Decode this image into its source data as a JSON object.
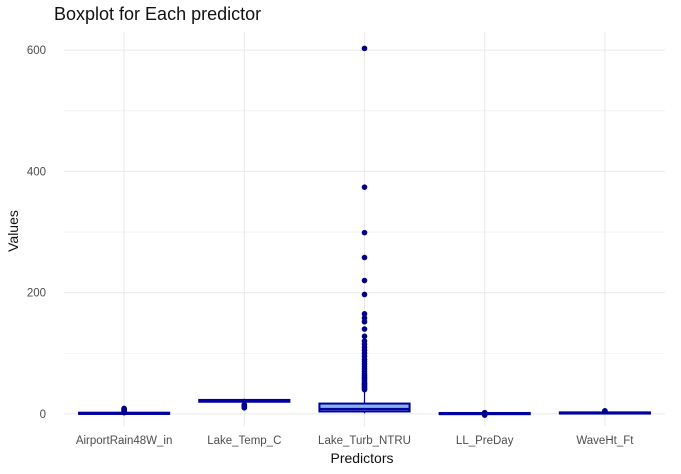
{
  "chart_data": {
    "type": "boxplot",
    "title": "Boxplot for Each predictor",
    "xlabel": "Predictors",
    "ylabel": "Values",
    "ylim": [
      -20,
      630
    ],
    "y_ticks": [
      0,
      200,
      400,
      600
    ],
    "grid": true,
    "colors": {
      "box_fill": "#87b6e6",
      "box_stroke": "#0000a0",
      "outlier": "#00008b",
      "grid": "#ebebeb"
    },
    "categories": [
      "AirportRain48W_in",
      "Lake_Temp_C",
      "Lake_Turb_NTRU",
      "LL_PreDay",
      "WaveHt_Ft"
    ],
    "series": [
      {
        "category": "AirportRain48W_in",
        "min": 0,
        "q1": 0,
        "median": 0.2,
        "q3": 0.6,
        "max": 1.5,
        "outliers": [
          2,
          3,
          4,
          5,
          6,
          7,
          8,
          9
        ]
      },
      {
        "category": "Lake_Temp_C",
        "min": 17,
        "q1": 20,
        "median": 21.5,
        "q3": 23,
        "max": 25,
        "outliers": [
          10,
          11,
          12,
          13,
          14,
          15
        ]
      },
      {
        "category": "Lake_Turb_NTRU",
        "min": 1,
        "q1": 4,
        "median": 8,
        "q3": 17,
        "max": 37,
        "outliers": [
          40,
          42,
          44,
          46,
          48,
          50,
          52,
          55,
          58,
          60,
          63,
          66,
          70,
          74,
          78,
          82,
          86,
          90,
          95,
          100,
          105,
          110,
          115,
          120,
          128,
          140,
          152,
          158,
          165,
          197,
          220,
          258,
          299,
          374,
          603
        ]
      },
      {
        "category": "LL_PreDay",
        "min": -1,
        "q1": -0.5,
        "median": 0,
        "q3": 0.5,
        "max": 1,
        "outliers": [
          -2,
          1.5,
          2
        ]
      },
      {
        "category": "WaveHt_Ft",
        "min": 0,
        "q1": 0.5,
        "median": 1,
        "q3": 1.5,
        "max": 3,
        "outliers": [
          3.5,
          4,
          4.5,
          5
        ]
      }
    ]
  }
}
